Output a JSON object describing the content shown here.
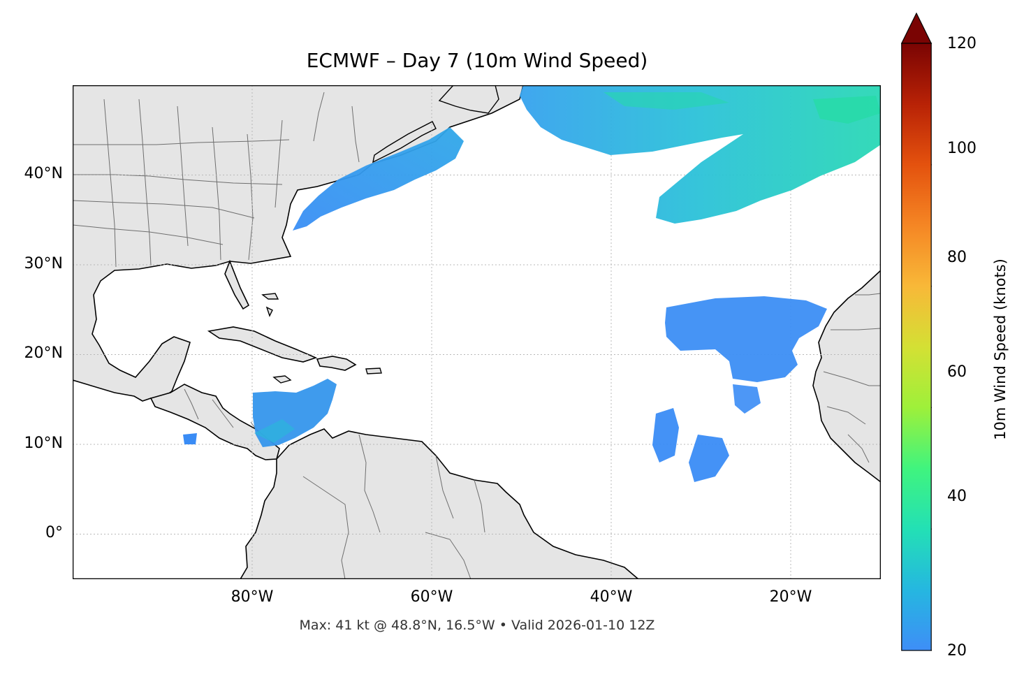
{
  "title": "ECMWF – Day 7 (10m Wind Speed)",
  "footer": "Max: 41 kt @ 48.8°N, 16.5°W • Valid 2026-01-10 12Z",
  "map": {
    "lon_range": [
      -100,
      -10
    ],
    "lat_range": [
      -5,
      50
    ],
    "lat_ticks": [
      "40°N",
      "30°N",
      "20°N",
      "10°N",
      "0°"
    ],
    "lon_ticks": [
      "80°W",
      "60°W",
      "40°W",
      "20°W"
    ],
    "gridlines": true,
    "land_color": "#e5e5e5",
    "coastline_color": "#000000",
    "border_color": "#6e6e6e"
  },
  "colorbar": {
    "label": "10m Wind Speed (knots)",
    "min": 20,
    "max": 120,
    "ticks": [
      "20",
      "40",
      "60",
      "80",
      "100",
      "120"
    ],
    "extend": "max",
    "colormap": "turbo"
  },
  "wind_features": [
    {
      "region": "North Atlantic jet (north-east)",
      "approx_knots": 30
    },
    {
      "region": "Off US east coast",
      "approx_knots": 26
    },
    {
      "region": "Caribbean Sea",
      "approx_knots": 25
    },
    {
      "region": "Trade winds west of Canaries",
      "approx_knots": 22
    },
    {
      "region": "Central tropical Atlantic",
      "approx_knots": 21
    }
  ],
  "colors": {
    "wind_low": "#3a8cf5",
    "wind_mid": "#2ab8e0",
    "wind_high": "#26e6a0"
  }
}
